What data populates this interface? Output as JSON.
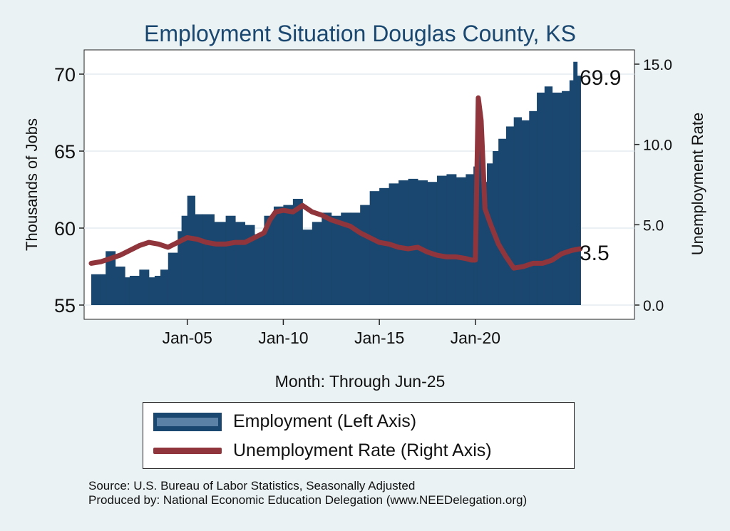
{
  "chart_data": {
    "type": "bar+line",
    "title": "Employment Situation Douglas  County, KS",
    "xlabel": "Month: Through Jun-25",
    "ylabel_left": "Thousands of Jobs",
    "ylabel_right": "Unemployment Rate",
    "x_range": [
      "Jan-00",
      "Jun-25"
    ],
    "x_tick_labels": [
      "Jan-05",
      "Jan-10",
      "Jan-15",
      "Jan-20"
    ],
    "ylim_left": [
      55,
      70
    ],
    "yticks_left": [
      "55",
      "60",
      "65",
      "70"
    ],
    "ylim_right": [
      0,
      15
    ],
    "yticks_right": [
      "0.0",
      "5.0",
      "10.0",
      "15.0"
    ],
    "grid": true,
    "legend_position": "bottom",
    "series": [
      {
        "name": "Employment (Left Axis)",
        "kind": "bar",
        "axis": "left",
        "color": "#1a476f",
        "points": [
          [
            2000.0,
            57.0
          ],
          [
            2000.5,
            57.0
          ],
          [
            2000.75,
            58.5
          ],
          [
            2001.25,
            57.5
          ],
          [
            2001.75,
            56.8
          ],
          [
            2002.0,
            56.9
          ],
          [
            2002.5,
            57.3
          ],
          [
            2003.0,
            56.8
          ],
          [
            2003.3,
            56.9
          ],
          [
            2003.6,
            57.3
          ],
          [
            2004.0,
            58.4
          ],
          [
            2004.5,
            59.8
          ],
          [
            2004.7,
            60.8
          ],
          [
            2005.0,
            62.1
          ],
          [
            2005.4,
            60.9
          ],
          [
            2005.8,
            60.9
          ],
          [
            2006.4,
            60.4
          ],
          [
            2007.0,
            60.8
          ],
          [
            2007.5,
            60.4
          ],
          [
            2008.0,
            60.2
          ],
          [
            2008.5,
            59.6
          ],
          [
            2009.0,
            60.8
          ],
          [
            2009.5,
            61.4
          ],
          [
            2010.0,
            61.5
          ],
          [
            2010.5,
            61.9
          ],
          [
            2011.0,
            59.9
          ],
          [
            2011.5,
            60.4
          ],
          [
            2012.0,
            61.0
          ],
          [
            2012.5,
            60.8
          ],
          [
            2013.0,
            61.0
          ],
          [
            2013.5,
            61.0
          ],
          [
            2014.0,
            61.5
          ],
          [
            2014.5,
            62.4
          ],
          [
            2015.0,
            62.6
          ],
          [
            2015.5,
            62.9
          ],
          [
            2016.0,
            63.1
          ],
          [
            2016.5,
            63.2
          ],
          [
            2017.0,
            63.1
          ],
          [
            2017.5,
            63.0
          ],
          [
            2018.0,
            63.4
          ],
          [
            2018.5,
            63.5
          ],
          [
            2019.0,
            63.3
          ],
          [
            2019.5,
            63.5
          ],
          [
            2019.9,
            64.0
          ],
          [
            2020.1,
            67.4
          ],
          [
            2020.3,
            63.0
          ],
          [
            2020.6,
            64.2
          ],
          [
            2020.9,
            65.0
          ],
          [
            2021.2,
            65.8
          ],
          [
            2021.6,
            66.6
          ],
          [
            2022.0,
            67.2
          ],
          [
            2022.4,
            67.0
          ],
          [
            2022.8,
            67.6
          ],
          [
            2023.2,
            68.8
          ],
          [
            2023.6,
            69.2
          ],
          [
            2024.0,
            68.8
          ],
          [
            2024.5,
            68.9
          ],
          [
            2024.9,
            69.6
          ],
          [
            2025.1,
            70.8
          ],
          [
            2025.3,
            69.9
          ],
          [
            2025.45,
            69.9
          ]
        ]
      },
      {
        "name": "Unemployment Rate (Right Axis)",
        "kind": "line",
        "axis": "right",
        "color": "#90353b",
        "points": [
          [
            2000.0,
            2.6
          ],
          [
            2000.5,
            2.7
          ],
          [
            2001.0,
            2.9
          ],
          [
            2001.5,
            3.1
          ],
          [
            2002.0,
            3.4
          ],
          [
            2002.5,
            3.7
          ],
          [
            2003.0,
            3.9
          ],
          [
            2003.5,
            3.8
          ],
          [
            2004.0,
            3.6
          ],
          [
            2004.5,
            3.9
          ],
          [
            2005.0,
            4.2
          ],
          [
            2005.5,
            4.1
          ],
          [
            2006.0,
            3.9
          ],
          [
            2006.5,
            3.8
          ],
          [
            2007.0,
            3.8
          ],
          [
            2007.5,
            3.9
          ],
          [
            2008.0,
            3.9
          ],
          [
            2008.5,
            4.2
          ],
          [
            2009.0,
            4.5
          ],
          [
            2009.3,
            5.3
          ],
          [
            2009.6,
            5.8
          ],
          [
            2010.0,
            5.9
          ],
          [
            2010.5,
            5.8
          ],
          [
            2011.0,
            6.2
          ],
          [
            2011.5,
            5.8
          ],
          [
            2012.0,
            5.6
          ],
          [
            2012.5,
            5.3
          ],
          [
            2013.0,
            5.1
          ],
          [
            2013.5,
            4.9
          ],
          [
            2014.0,
            4.5
          ],
          [
            2014.5,
            4.2
          ],
          [
            2015.0,
            3.9
          ],
          [
            2015.5,
            3.8
          ],
          [
            2016.0,
            3.6
          ],
          [
            2016.5,
            3.5
          ],
          [
            2017.0,
            3.6
          ],
          [
            2017.5,
            3.3
          ],
          [
            2018.0,
            3.1
          ],
          [
            2018.5,
            3.0
          ],
          [
            2019.0,
            3.0
          ],
          [
            2019.5,
            2.9
          ],
          [
            2019.8,
            2.8
          ],
          [
            2020.0,
            2.8
          ],
          [
            2020.15,
            12.9
          ],
          [
            2020.3,
            11.5
          ],
          [
            2020.5,
            6.0
          ],
          [
            2020.8,
            5.0
          ],
          [
            2021.2,
            3.8
          ],
          [
            2021.6,
            3.0
          ],
          [
            2022.0,
            2.3
          ],
          [
            2022.5,
            2.4
          ],
          [
            2023.0,
            2.6
          ],
          [
            2023.5,
            2.6
          ],
          [
            2024.0,
            2.8
          ],
          [
            2024.5,
            3.2
          ],
          [
            2025.0,
            3.4
          ],
          [
            2025.45,
            3.5
          ]
        ]
      }
    ],
    "annotations": [
      {
        "text": "69.9",
        "series": "Employment (Left Axis)",
        "x": 2025.45,
        "y": 69.9
      },
      {
        "text": "3.5",
        "series": "Unemployment Rate (Right Axis)",
        "x": 2025.45,
        "y": 3.5
      }
    ]
  },
  "legend": {
    "employment_label": "Employment (Left Axis)",
    "unemployment_label": "Unemployment Rate (Right Axis)"
  },
  "footer": {
    "source": "Source: U.S. Bureau of Labor Statistics, Seasonally Adjusted",
    "produced_by": "Produced by: National Economic Education Delegation (www.NEEDelegation.org)"
  },
  "colors": {
    "background": "#eaf2f3",
    "plot_area": "#ffffff",
    "employment": "#1a476f",
    "unemployment": "#90353b",
    "title": "#1a476f"
  }
}
